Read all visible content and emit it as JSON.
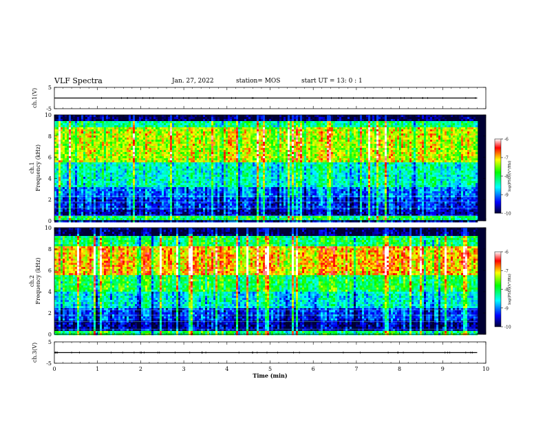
{
  "header": {
    "title": "VLF Spectra",
    "date": "Jan. 27, 2022",
    "station": "station= MOS",
    "start": "start  UT  =   13: 0  : 1"
  },
  "colors": {
    "colormap": [
      "#000033",
      "#0000ff",
      "#00ffff",
      "#00ff00",
      "#ffff00",
      "#ff0000",
      "#ffffff"
    ],
    "trace": "#000000"
  },
  "chart_data": [
    {
      "type": "line",
      "panel": "ch1-waveform",
      "ylabel": "ch.1(V)",
      "ylim": [
        -5,
        5
      ],
      "yticks": [
        "5",
        "-5"
      ],
      "x": [
        0,
        9.8
      ],
      "values": [
        0,
        0
      ],
      "xlim": [
        0,
        10
      ]
    },
    {
      "type": "heatmap",
      "panel": "ch1-spectrogram",
      "ylabel": "ch.1\nFrequency (kHz)",
      "ylim": [
        0,
        10
      ],
      "yticks": [
        "0",
        "2",
        "4",
        "6",
        "8",
        "10"
      ],
      "xlim": [
        0,
        10
      ],
      "x_extent": [
        0,
        9.8
      ],
      "colorbar": {
        "label": "log(PSD)(V²/Hz)",
        "range": [
          -10,
          -6
        ],
        "ticks": [
          "-6",
          "-7",
          "-8",
          "-9",
          "-10"
        ]
      },
      "bands": [
        {
          "f": [
            0.0,
            0.4
          ],
          "level": -8.0
        },
        {
          "f": [
            0.4,
            1.0
          ],
          "level": -9.6
        },
        {
          "f": [
            1.0,
            2.2
          ],
          "level": -9.3
        },
        {
          "f": [
            2.2,
            3.2
          ],
          "level": -9.0
        },
        {
          "f": [
            3.2,
            5.5
          ],
          "level": -8.4
        },
        {
          "f": [
            5.5,
            8.8
          ],
          "level": -7.3
        },
        {
          "f": [
            8.8,
            9.4
          ],
          "level": -8.2
        },
        {
          "f": [
            9.4,
            10.0
          ],
          "level": -9.9
        }
      ]
    },
    {
      "type": "heatmap",
      "panel": "ch2-spectrogram",
      "ylabel": "ch.2\nFrequency (kHz)",
      "ylim": [
        0,
        10
      ],
      "yticks": [
        "0",
        "2",
        "4",
        "6",
        "8",
        "10"
      ],
      "xlim": [
        0,
        10
      ],
      "x_extent": [
        0,
        9.8
      ],
      "colorbar": {
        "label": "log(PSD)(V²/Hz)",
        "range": [
          -10,
          -6
        ],
        "ticks": [
          "-6",
          "-7",
          "-8",
          "-9",
          "-10"
        ]
      },
      "bands": [
        {
          "f": [
            0.0,
            0.3
          ],
          "level": -8.0
        },
        {
          "f": [
            0.3,
            1.2
          ],
          "level": -9.6
        },
        {
          "f": [
            1.2,
            2.5
          ],
          "level": -9.2
        },
        {
          "f": [
            2.5,
            4.0
          ],
          "level": -8.5
        },
        {
          "f": [
            4.0,
            5.5
          ],
          "level": -7.9
        },
        {
          "f": [
            5.5,
            8.2
          ],
          "level": -6.9
        },
        {
          "f": [
            8.2,
            9.3
          ],
          "level": -8.0
        },
        {
          "f": [
            9.3,
            10.0
          ],
          "level": -9.9
        }
      ]
    },
    {
      "type": "line",
      "panel": "ch3-waveform",
      "ylabel": "ch.3(V)",
      "ylim": [
        -5,
        5
      ],
      "yticks": [
        "5",
        "-5"
      ],
      "x": [
        0,
        9.8
      ],
      "values": [
        0,
        0
      ],
      "xlim": [
        0,
        10
      ],
      "xlabel": "Time (min)",
      "xticks": [
        "0",
        "1",
        "2",
        "3",
        "4",
        "5",
        "6",
        "7",
        "8",
        "9",
        "10"
      ]
    }
  ]
}
